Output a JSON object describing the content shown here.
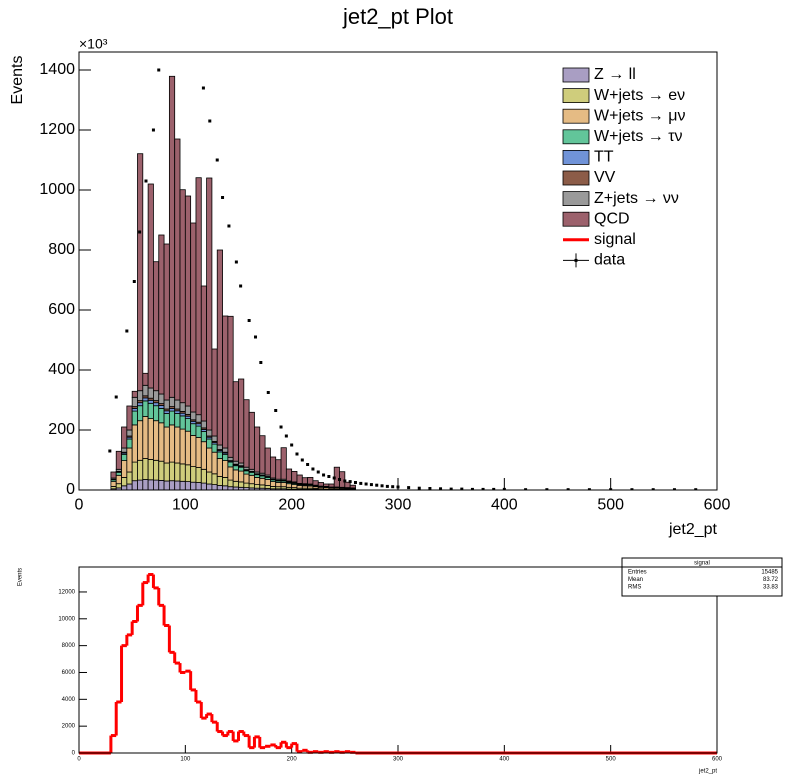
{
  "chart_data": [
    {
      "type": "stacked_histogram",
      "title": "jet2_pt Plot",
      "ylabel": "Events",
      "xlabel": "jet2_pt",
      "y_multiplier": "×10³",
      "xlim": [
        0,
        600
      ],
      "ylim": [
        0,
        1460
      ],
      "xticks": [
        0,
        100,
        200,
        300,
        400,
        500,
        600
      ],
      "yticks": [
        0,
        200,
        400,
        600,
        800,
        1000,
        1200,
        1400
      ],
      "legend": "upper right",
      "bins": [
        30,
        35,
        40,
        45,
        50,
        55,
        60,
        65,
        70,
        75,
        80,
        85,
        90,
        95,
        100,
        105,
        110,
        115,
        120,
        125,
        130,
        135,
        140,
        145,
        150,
        155,
        160,
        165,
        170,
        175,
        180,
        185,
        190,
        195,
        200,
        205,
        210,
        215,
        220,
        225,
        230,
        235,
        240,
        245,
        250,
        255,
        260
      ],
      "series": [
        {
          "name": "Z → ll",
          "color": "#a99ec3",
          "values": [
            4,
            7,
            14,
            20,
            31,
            33,
            35,
            34,
            33,
            32,
            30,
            31,
            30,
            29,
            28,
            26,
            25,
            23,
            20,
            18,
            15,
            14,
            11,
            10,
            9,
            8,
            7,
            6,
            6,
            5,
            4,
            4,
            4,
            3,
            3,
            2,
            2,
            2,
            2,
            1,
            1,
            1,
            1,
            1,
            1,
            1
          ]
        },
        {
          "name": "W+jets → eν",
          "color": "#cfcd7c",
          "values": [
            8,
            14,
            28,
            40,
            62,
            66,
            70,
            68,
            66,
            64,
            60,
            62,
            60,
            58,
            56,
            52,
            50,
            46,
            40,
            36,
            30,
            28,
            22,
            19,
            18,
            15,
            14,
            12,
            11,
            10,
            8,
            7,
            7,
            6,
            5,
            4,
            4,
            4,
            3,
            3,
            2,
            2,
            2,
            2,
            1,
            1
          ]
        },
        {
          "name": "W+jets → μν",
          "color": "#e5bb84",
          "values": [
            16,
            28,
            56,
            80,
            124,
            132,
            140,
            136,
            132,
            128,
            120,
            124,
            120,
            116,
            112,
            104,
            100,
            92,
            80,
            72,
            60,
            56,
            44,
            38,
            36,
            30,
            28,
            24,
            22,
            20,
            16,
            14,
            14,
            12,
            10,
            9,
            8,
            7,
            6,
            5,
            5,
            4,
            4,
            3,
            3,
            2
          ]
        },
        {
          "name": "W+jets → τν",
          "color": "#62c59a",
          "values": [
            6,
            10,
            21,
            30,
            46,
            50,
            52,
            51,
            50,
            48,
            45,
            46,
            45,
            44,
            42,
            39,
            38,
            34,
            30,
            27,
            22,
            21,
            16,
            14,
            13,
            11,
            10,
            9,
            8,
            7,
            6,
            5,
            5,
            4,
            4,
            3,
            3,
            3,
            2,
            2,
            2,
            1,
            1,
            1,
            1,
            1
          ]
        },
        {
          "name": "TT",
          "color": "#7093d8",
          "values": [
            1,
            2,
            4,
            6,
            9,
            10,
            10,
            10,
            10,
            10,
            9,
            9,
            9,
            9,
            8,
            8,
            8,
            7,
            6,
            5,
            5,
            4,
            3,
            3,
            3,
            2,
            2,
            2,
            2,
            2,
            1,
            1,
            1,
            1,
            1,
            1,
            1,
            1,
            1,
            1,
            1,
            1,
            1,
            1,
            1,
            1
          ]
        },
        {
          "name": "VV",
          "color": "#8c5c48",
          "values": [
            1,
            1,
            3,
            4,
            6,
            7,
            7,
            7,
            7,
            6,
            6,
            6,
            6,
            6,
            6,
            5,
            5,
            5,
            4,
            4,
            3,
            3,
            2,
            2,
            2,
            2,
            1,
            1,
            1,
            1,
            1,
            1,
            1,
            1,
            1,
            1,
            1,
            1,
            0,
            0,
            0,
            0,
            0,
            0,
            0,
            0
          ]
        },
        {
          "name": "Z+jets → νν",
          "color": "#9a9a9a",
          "values": [
            4,
            7,
            14,
            20,
            31,
            33,
            35,
            34,
            33,
            32,
            30,
            31,
            30,
            29,
            28,
            26,
            25,
            23,
            20,
            18,
            15,
            14,
            11,
            10,
            9,
            8,
            7,
            6,
            6,
            5,
            4,
            4,
            4,
            3,
            3,
            2,
            2,
            2,
            2,
            1,
            1,
            1,
            1,
            1,
            1,
            1
          ]
        },
        {
          "name": "QCD",
          "color": "#9c616c",
          "values": [
            20,
            60,
            70,
            80,
            20,
            790,
            40,
            680,
            430,
            530,
            520,
            1070,
            870,
            710,
            700,
            630,
            790,
            450,
            840,
            290,
            650,
            440,
            470,
            265,
            280,
            225,
            190,
            150,
            125,
            90,
            70,
            65,
            105,
            40,
            35,
            28,
            20,
            22,
            15,
            12,
            8,
            10,
            66,
            52,
            18,
            9
          ]
        }
      ],
      "overlay": {
        "name": "signal",
        "color": "#ff0000"
      },
      "data": {
        "name": "data",
        "color": "#000000",
        "x": [
          29,
          35,
          45,
          52,
          57,
          63,
          70,
          75,
          117,
          123,
          130,
          135,
          141,
          148,
          152,
          160,
          166,
          171,
          178,
          185,
          190,
          195,
          200,
          205,
          210,
          215,
          220,
          225,
          230,
          235,
          240,
          245,
          250,
          255,
          260,
          265,
          270,
          275,
          280,
          285,
          290,
          295,
          300,
          310,
          320,
          330,
          340,
          350,
          360,
          370,
          380,
          390,
          400,
          420,
          440,
          460,
          480,
          500,
          520,
          540,
          560,
          580
        ],
        "values": [
          130,
          310,
          530,
          695,
          860,
          1030,
          1200,
          1400,
          1340,
          1230,
          1100,
          975,
          880,
          760,
          680,
          565,
          510,
          425,
          325,
          265,
          210,
          180,
          150,
          120,
          100,
          85,
          70,
          60,
          50,
          45,
          40,
          35,
          30,
          28,
          25,
          22,
          20,
          18,
          16,
          14,
          12,
          11,
          10,
          8,
          6,
          5,
          4,
          3,
          3,
          2,
          2,
          2,
          2,
          1,
          1,
          1,
          1,
          1,
          1,
          1,
          1,
          1
        ]
      }
    },
    {
      "type": "histogram",
      "ylabel": "Events",
      "xlabel": "jet2_pt",
      "color": "#ff0000",
      "xlim": [
        0,
        600
      ],
      "ylim": [
        0,
        13860
      ],
      "xticks": [
        0,
        100,
        200,
        300,
        400,
        500,
        600
      ],
      "yticks": [
        0,
        2000,
        4000,
        6000,
        8000,
        10000,
        12000
      ],
      "bins": [
        30,
        35,
        40,
        45,
        50,
        55,
        60,
        65,
        70,
        75,
        80,
        85,
        90,
        95,
        100,
        105,
        110,
        115,
        120,
        125,
        130,
        135,
        140,
        145,
        150,
        155,
        160,
        165,
        170,
        175,
        180,
        185,
        190,
        195,
        200,
        205,
        210,
        215,
        220,
        225,
        230,
        235,
        240,
        245,
        250,
        255,
        260
      ],
      "values": [
        1300,
        3800,
        8000,
        8800,
        9800,
        11000,
        12700,
        13300,
        12300,
        11000,
        9500,
        7500,
        6700,
        6000,
        6100,
        4700,
        3800,
        2600,
        2900,
        2300,
        1600,
        1300,
        1600,
        900,
        1600,
        1300,
        400,
        1200,
        400,
        500,
        600,
        400,
        800,
        400,
        700,
        100,
        200,
        50,
        100,
        50,
        100,
        50,
        100,
        50,
        100,
        50
      ],
      "stats": {
        "title": "signal",
        "rows": [
          {
            "label": "Entries",
            "value": 15485
          },
          {
            "label": "Mean",
            "value": 83.72
          },
          {
            "label": "RMS",
            "value": 33.83
          }
        ]
      }
    }
  ]
}
